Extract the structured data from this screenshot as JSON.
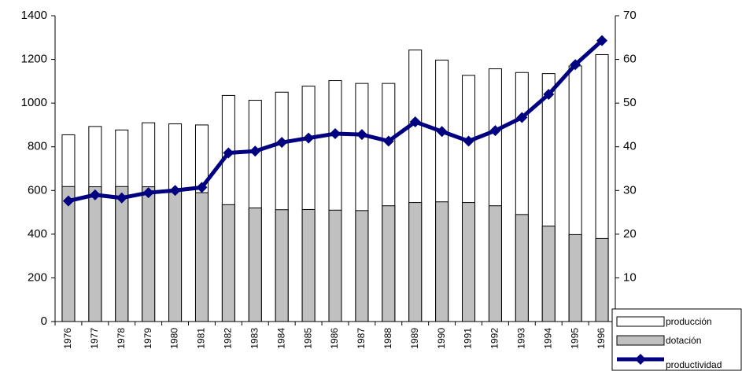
{
  "chart_data": {
    "type": "bar-line",
    "categories": [
      "1976",
      "1977",
      "1978",
      "1979",
      "1980",
      "1981",
      "1982",
      "1983",
      "1984",
      "1985",
      "1986",
      "1987",
      "1988",
      "1989",
      "1990",
      "1991",
      "1992",
      "1993",
      "1994",
      "1995",
      "1996"
    ],
    "series": [
      {
        "name": "producción",
        "type": "bar",
        "color": "#ffffff",
        "values": [
          855,
          893,
          877,
          910,
          905,
          900,
          1035,
          1013,
          1050,
          1078,
          1103,
          1090,
          1090,
          1243,
          1197,
          1127,
          1157,
          1140,
          1135,
          1170,
          1222
        ]
      },
      {
        "name": "dotación",
        "type": "bar",
        "color": "#c0c0c0",
        "values": [
          618,
          617,
          618,
          617,
          605,
          590,
          535,
          520,
          512,
          513,
          510,
          508,
          530,
          545,
          548,
          545,
          530,
          490,
          437,
          398,
          380
        ]
      },
      {
        "name": "productividad",
        "type": "line",
        "axis": "y2",
        "color": "#000080",
        "values": [
          27.6,
          29,
          28.3,
          29.5,
          30,
          30.7,
          38.6,
          39,
          41,
          42,
          43,
          42.8,
          41.3,
          45.7,
          43.5,
          41.3,
          43.7,
          46.7,
          52,
          58.8,
          64.3
        ]
      }
    ],
    "ylim": [
      0,
      1400
    ],
    "yticks": [
      0,
      200,
      400,
      600,
      800,
      1000,
      1200,
      1400
    ],
    "y2lim": [
      0,
      70
    ],
    "y2ticks": [
      10,
      20,
      30,
      40,
      50,
      60,
      70
    ],
    "legend": "bottom-right"
  }
}
